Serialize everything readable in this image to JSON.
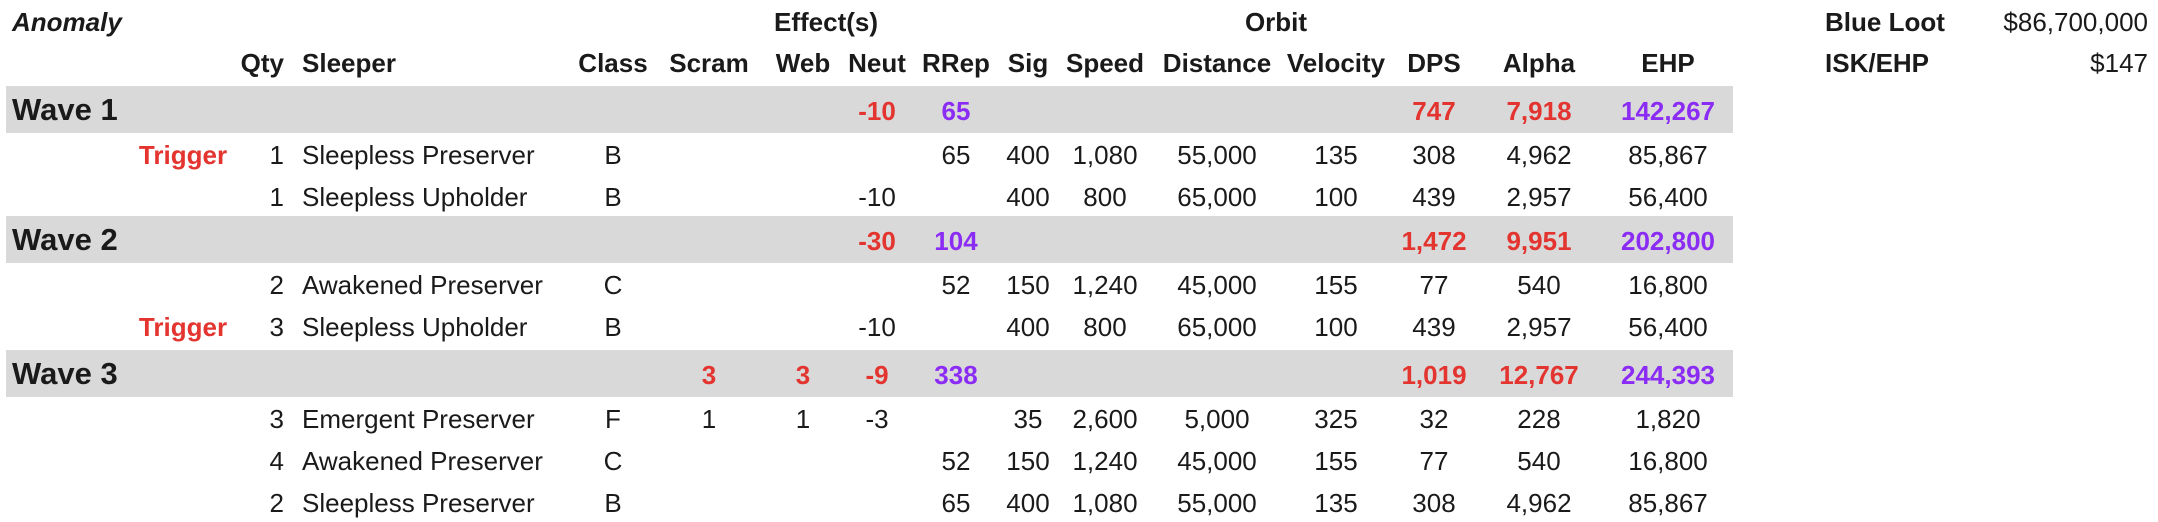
{
  "header": {
    "anomaly_label": "Anomaly",
    "effects_label": "Effect(s)",
    "orbit_label": "Orbit",
    "columns": {
      "qty": "Qty",
      "sleeper": "Sleeper",
      "class": "Class",
      "scram": "Scram",
      "web": "Web",
      "neut": "Neut",
      "rrep": "RRep",
      "sig": "Sig",
      "speed": "Speed",
      "distance": "Distance",
      "velocity": "Velocity",
      "dps": "DPS",
      "alpha": "Alpha",
      "ehp": "EHP"
    }
  },
  "summary": {
    "blue_loot_label": "Blue Loot",
    "blue_loot_value": "$86,700,000",
    "isk_ehp_label": "ISK/EHP",
    "isk_ehp_value": "$147"
  },
  "waves": [
    {
      "label": "Wave 1",
      "totals": {
        "scram": "",
        "web": "",
        "neut": "-10",
        "rrep": "65",
        "dps": "747",
        "alpha": "7,918",
        "ehp": "142,267"
      },
      "rows": [
        {
          "trigger": "Trigger",
          "qty": "1",
          "sleeper": "Sleepless Preserver",
          "class": "B",
          "scram": "",
          "web": "",
          "neut": "",
          "rrep": "65",
          "sig": "400",
          "speed": "1,080",
          "distance": "55,000",
          "velocity": "135",
          "dps": "308",
          "alpha": "4,962",
          "ehp": "85,867"
        },
        {
          "trigger": "",
          "qty": "1",
          "sleeper": "Sleepless Upholder",
          "class": "B",
          "scram": "",
          "web": "",
          "neut": "-10",
          "rrep": "",
          "sig": "400",
          "speed": "800",
          "distance": "65,000",
          "velocity": "100",
          "dps": "439",
          "alpha": "2,957",
          "ehp": "56,400"
        }
      ]
    },
    {
      "label": "Wave 2",
      "totals": {
        "scram": "",
        "web": "",
        "neut": "-30",
        "rrep": "104",
        "dps": "1,472",
        "alpha": "9,951",
        "ehp": "202,800"
      },
      "rows": [
        {
          "trigger": "",
          "qty": "2",
          "sleeper": "Awakened Preserver",
          "class": "C",
          "scram": "",
          "web": "",
          "neut": "",
          "rrep": "52",
          "sig": "150",
          "speed": "1,240",
          "distance": "45,000",
          "velocity": "155",
          "dps": "77",
          "alpha": "540",
          "ehp": "16,800"
        },
        {
          "trigger": "Trigger",
          "qty": "3",
          "sleeper": "Sleepless Upholder",
          "class": "B",
          "scram": "",
          "web": "",
          "neut": "-10",
          "rrep": "",
          "sig": "400",
          "speed": "800",
          "distance": "65,000",
          "velocity": "100",
          "dps": "439",
          "alpha": "2,957",
          "ehp": "56,400"
        }
      ]
    },
    {
      "label": "Wave 3",
      "totals": {
        "scram": "3",
        "web": "3",
        "neut": "-9",
        "rrep": "338",
        "dps": "1,019",
        "alpha": "12,767",
        "ehp": "244,393"
      },
      "rows": [
        {
          "trigger": "",
          "qty": "3",
          "sleeper": "Emergent Preserver",
          "class": "F",
          "scram": "1",
          "web": "1",
          "neut": "-3",
          "rrep": "",
          "sig": "35",
          "speed": "2,600",
          "distance": "5,000",
          "velocity": "325",
          "dps": "32",
          "alpha": "228",
          "ehp": "1,820"
        },
        {
          "trigger": "",
          "qty": "4",
          "sleeper": "Awakened Preserver",
          "class": "C",
          "scram": "",
          "web": "",
          "neut": "",
          "rrep": "52",
          "sig": "150",
          "speed": "1,240",
          "distance": "45,000",
          "velocity": "155",
          "dps": "77",
          "alpha": "540",
          "ehp": "16,800"
        },
        {
          "trigger": "",
          "qty": "2",
          "sleeper": "Sleepless Preserver",
          "class": "B",
          "scram": "",
          "web": "",
          "neut": "",
          "rrep": "65",
          "sig": "400",
          "speed": "1,080",
          "distance": "55,000",
          "velocity": "135",
          "dps": "308",
          "alpha": "4,962",
          "ehp": "85,867"
        }
      ]
    }
  ]
}
